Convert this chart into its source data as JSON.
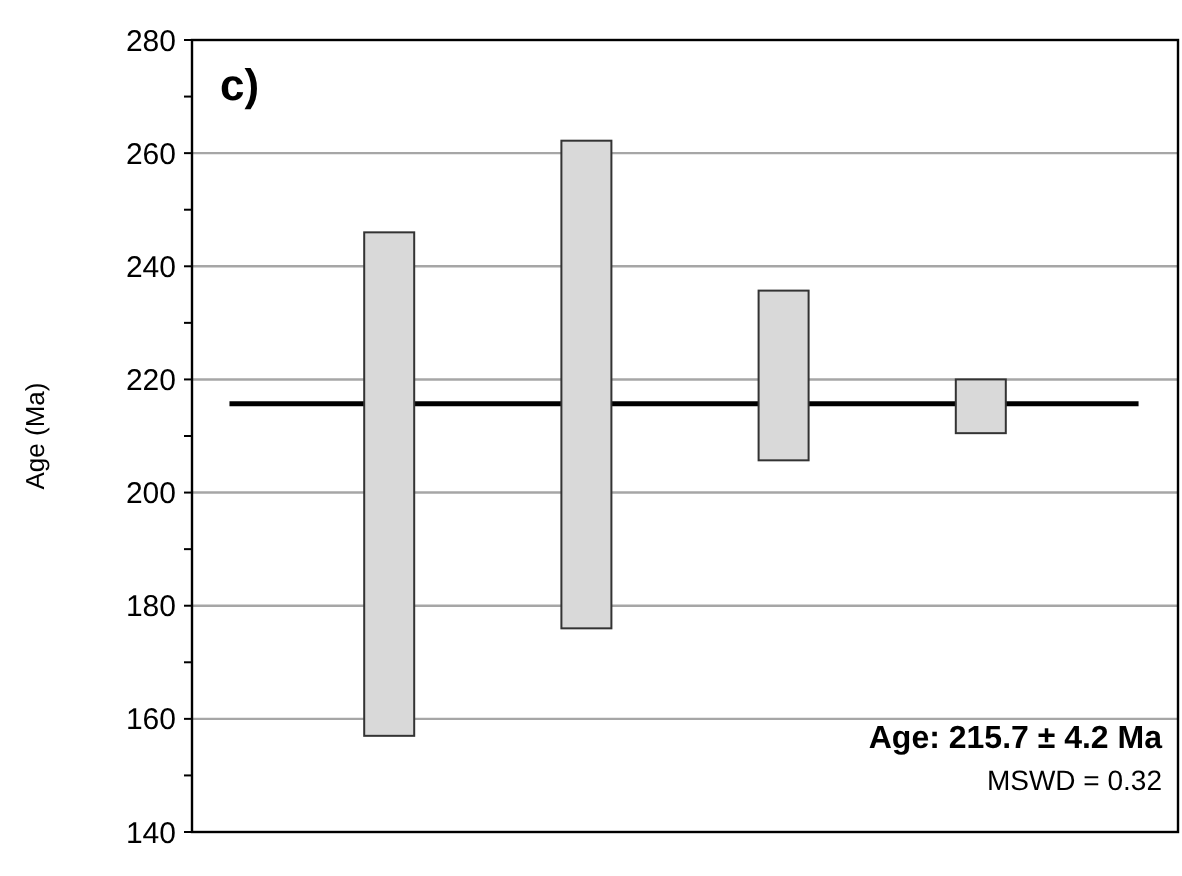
{
  "chart_data": {
    "type": "bar",
    "title": "c)",
    "ylabel": "Age (Ma)",
    "categories": [
      null,
      null,
      null,
      null
    ],
    "base": [
      157,
      176,
      205.7,
      210.5
    ],
    "values": [
      89,
      86.2,
      30,
      9.5
    ],
    "color": "#d9d9d9",
    "ylim": [
      140,
      280
    ],
    "yticks": [
      140,
      {
        "value": 150,
        "label": null
      },
      160,
      {
        "value": 170,
        "label": null
      },
      180,
      {
        "value": 190,
        "label": null
      },
      200,
      {
        "value": 210,
        "label": null
      },
      220,
      {
        "value": 230,
        "label": null
      },
      240,
      {
        "value": 250,
        "label": null
      },
      260,
      {
        "value": 270,
        "label": null
      },
      280
    ],
    "grid": "y",
    "ref_lines": [
      {
        "axis": "y",
        "value": 215.7,
        "color": "#000000"
      }
    ],
    "annotations": [
      "Age: 215.7 ± 4.2 Ma",
      "MSWD = 0.32"
    ]
  }
}
